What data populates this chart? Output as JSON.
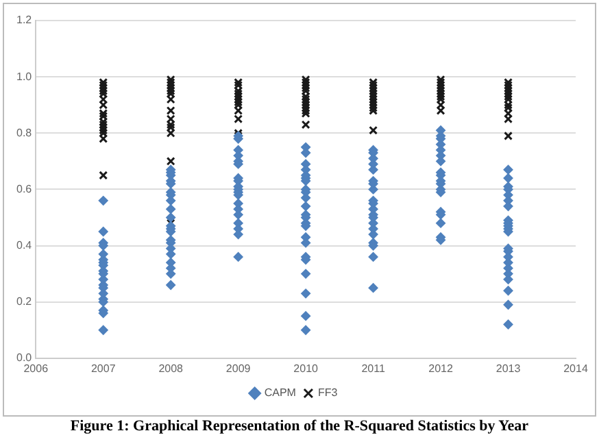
{
  "chart_data": {
    "type": "scatter",
    "xlim": [
      2006,
      2014
    ],
    "xticks": [
      2006,
      2007,
      2008,
      2009,
      2010,
      2011,
      2012,
      2013,
      2014
    ],
    "ylim": [
      0,
      1.2
    ],
    "yticks": [
      {
        "value": 0,
        "label": "0.0"
      },
      {
        "value": 0.2,
        "label": "0.2"
      },
      {
        "value": 0.4,
        "label": "0.4"
      },
      {
        "value": 0.6,
        "label": "0.6"
      },
      {
        "value": 0.8,
        "label": "0.8"
      },
      {
        "value": 1,
        "label": "1.0"
      },
      {
        "value": 1.2,
        "label": "1.2"
      }
    ],
    "grid": "y",
    "legend": "bottom",
    "annotations": [
      "Figure 1: Graphical Representation of the R-Squared Statistics by Year"
    ],
    "series": [
      {
        "name": "CAPM",
        "color": "#4f81bd",
        "marker": "diamond",
        "x": [
          2007,
          2007,
          2007,
          2007,
          2007,
          2007,
          2007,
          2007,
          2007,
          2007,
          2007,
          2007,
          2007,
          2007,
          2007,
          2007,
          2007,
          2007,
          2007,
          2008,
          2008,
          2008,
          2008,
          2008,
          2008,
          2008,
          2008,
          2008,
          2008,
          2008,
          2008,
          2008,
          2008,
          2008,
          2008,
          2008,
          2008,
          2008,
          2008,
          2008,
          2009,
          2009,
          2009,
          2009,
          2009,
          2009,
          2009,
          2009,
          2009,
          2009,
          2009,
          2009,
          2009,
          2009,
          2009,
          2009,
          2009,
          2009,
          2009,
          2010,
          2010,
          2010,
          2010,
          2010,
          2010,
          2010,
          2010,
          2010,
          2010,
          2010,
          2010,
          2010,
          2010,
          2010,
          2010,
          2010,
          2010,
          2010,
          2010,
          2010,
          2010,
          2010,
          2011,
          2011,
          2011,
          2011,
          2011,
          2011,
          2011,
          2011,
          2011,
          2011,
          2011,
          2011,
          2011,
          2011,
          2011,
          2011,
          2011,
          2011,
          2011,
          2011,
          2012,
          2012,
          2012,
          2012,
          2012,
          2012,
          2012,
          2012,
          2012,
          2012,
          2012,
          2012,
          2012,
          2012,
          2012,
          2012,
          2012,
          2012,
          2013,
          2013,
          2013,
          2013,
          2013,
          2013,
          2013,
          2013,
          2013,
          2013,
          2013,
          2013,
          2013,
          2013,
          2013,
          2013,
          2013,
          2013,
          2013,
          2013,
          2013,
          2013
        ],
        "values": [
          0.56,
          0.45,
          0.41,
          0.4,
          0.37,
          0.35,
          0.34,
          0.33,
          0.31,
          0.3,
          0.28,
          0.26,
          0.25,
          0.23,
          0.21,
          0.2,
          0.17,
          0.16,
          0.1,
          0.67,
          0.66,
          0.65,
          0.63,
          0.62,
          0.59,
          0.58,
          0.56,
          0.53,
          0.5,
          0.47,
          0.46,
          0.45,
          0.42,
          0.41,
          0.39,
          0.37,
          0.34,
          0.32,
          0.3,
          0.26,
          0.79,
          0.78,
          0.74,
          0.72,
          0.7,
          0.69,
          0.64,
          0.63,
          0.61,
          0.6,
          0.59,
          0.58,
          0.55,
          0.53,
          0.51,
          0.48,
          0.46,
          0.44,
          0.36,
          0.75,
          0.73,
          0.69,
          0.67,
          0.65,
          0.64,
          0.63,
          0.6,
          0.59,
          0.57,
          0.54,
          0.51,
          0.5,
          0.48,
          0.47,
          0.43,
          0.41,
          0.36,
          0.35,
          0.3,
          0.23,
          0.15,
          0.1,
          0.74,
          0.73,
          0.71,
          0.69,
          0.67,
          0.63,
          0.62,
          0.6,
          0.56,
          0.55,
          0.53,
          0.51,
          0.5,
          0.48,
          0.46,
          0.44,
          0.41,
          0.4,
          0.36,
          0.25,
          0.81,
          0.79,
          0.78,
          0.76,
          0.74,
          0.72,
          0.7,
          0.66,
          0.65,
          0.63,
          0.62,
          0.6,
          0.59,
          0.52,
          0.51,
          0.48,
          0.43,
          0.42,
          0.67,
          0.64,
          0.61,
          0.6,
          0.58,
          0.56,
          0.54,
          0.49,
          0.48,
          0.47,
          0.46,
          0.45,
          0.39,
          0.38,
          0.36,
          0.34,
          0.32,
          0.3,
          0.28,
          0.24,
          0.19,
          0.12
        ]
      },
      {
        "name": "FF3",
        "color": "#1a1a1a",
        "marker": "cross",
        "x": [
          2007,
          2007,
          2007,
          2007,
          2007,
          2007,
          2007,
          2007,
          2007,
          2007,
          2007,
          2007,
          2007,
          2007,
          2007,
          2007,
          2008,
          2008,
          2008,
          2008,
          2008,
          2008,
          2008,
          2008,
          2008,
          2008,
          2008,
          2008,
          2008,
          2008,
          2009,
          2009,
          2009,
          2009,
          2009,
          2009,
          2009,
          2009,
          2009,
          2009,
          2009,
          2009,
          2010,
          2010,
          2010,
          2010,
          2010,
          2010,
          2010,
          2010,
          2010,
          2010,
          2010,
          2010,
          2010,
          2011,
          2011,
          2011,
          2011,
          2011,
          2011,
          2011,
          2011,
          2011,
          2011,
          2011,
          2011,
          2012,
          2012,
          2012,
          2012,
          2012,
          2012,
          2012,
          2012,
          2012,
          2012,
          2013,
          2013,
          2013,
          2013,
          2013,
          2013,
          2013,
          2013,
          2013,
          2013,
          2013,
          2013
        ],
        "values": [
          0.98,
          0.97,
          0.96,
          0.95,
          0.94,
          0.92,
          0.9,
          0.87,
          0.86,
          0.84,
          0.83,
          0.82,
          0.81,
          0.8,
          0.78,
          0.65,
          0.99,
          0.98,
          0.97,
          0.96,
          0.95,
          0.94,
          0.92,
          0.88,
          0.85,
          0.83,
          0.82,
          0.8,
          0.7,
          0.48,
          0.98,
          0.97,
          0.95,
          0.94,
          0.93,
          0.92,
          0.91,
          0.9,
          0.88,
          0.85,
          0.8,
          0.79,
          0.99,
          0.98,
          0.97,
          0.96,
          0.95,
          0.93,
          0.92,
          0.91,
          0.9,
          0.89,
          0.88,
          0.87,
          0.83,
          0.98,
          0.97,
          0.96,
          0.95,
          0.94,
          0.93,
          0.92,
          0.91,
          0.9,
          0.89,
          0.88,
          0.81,
          0.99,
          0.98,
          0.97,
          0.96,
          0.95,
          0.94,
          0.93,
          0.92,
          0.9,
          0.88,
          0.98,
          0.97,
          0.96,
          0.95,
          0.94,
          0.93,
          0.92,
          0.9,
          0.89,
          0.87,
          0.85,
          0.79
        ]
      }
    ]
  }
}
